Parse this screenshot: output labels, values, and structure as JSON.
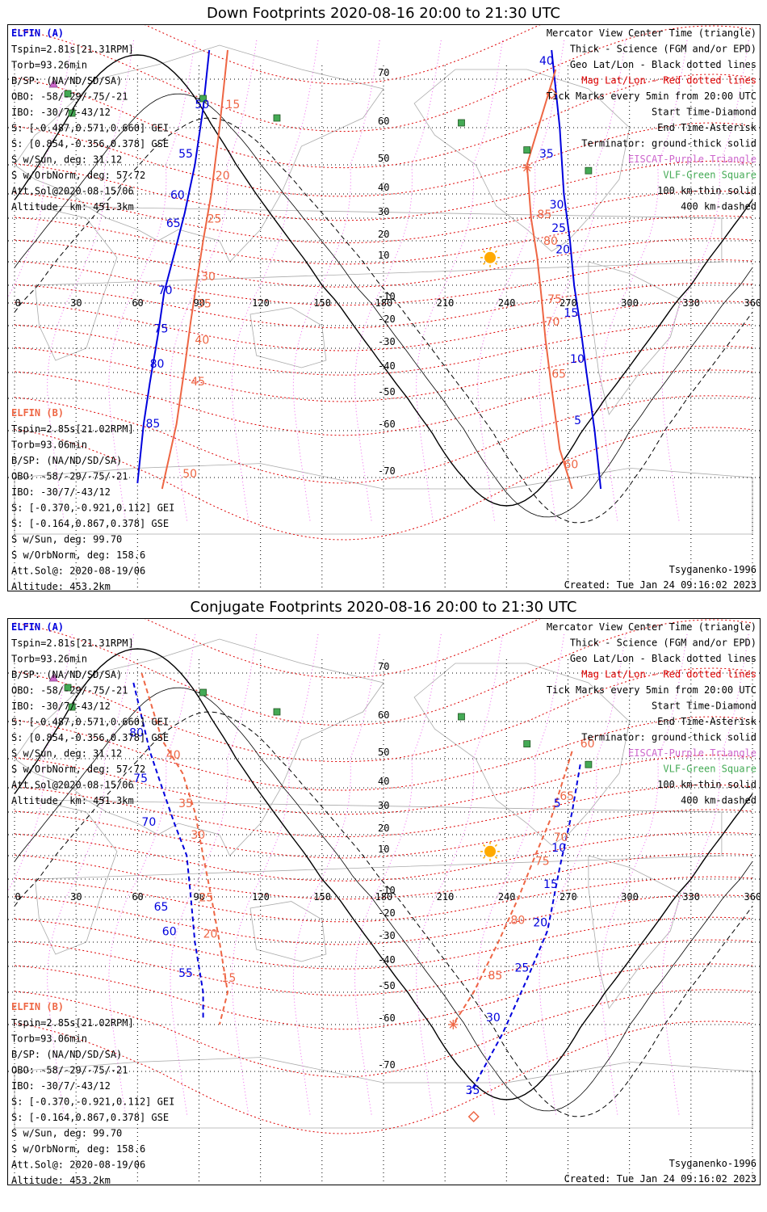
{
  "panels": [
    {
      "title": "Down Footprints 2020-08-16 20:00 to 21:30 UTC",
      "elfin_a_header": "ELFIN (A)",
      "elfin_a_info": [
        "Tspin=2.81s[21.31RPM]",
        "Torb=93.26min",
        "B/SP: (NA/ND/SD/SA)",
        "OBO: -58/-29/-75/-21",
        "IBO: -30/7/-43/12",
        "S: [-0.487,0.571,0.660] GEI",
        "S: [0.854,-0.356,0.378] GSE",
        "S w/Sun, deg: 31.12",
        "S w/OrbNorm, deg: 57.72",
        "Att.Sol@2020-08-15/06",
        "Altitude, km: 451.3km"
      ],
      "elfin_b_header": "ELFIN (B)",
      "elfin_b_info": [
        "Tspin=2.85s[21.02RPM]",
        "Torb=93.06min",
        "B/SP: (NA/ND/SD/SA)",
        "OBO: -58/-29/-75/-21",
        "IBO: -30/7/-43/12",
        "S: [-0.370,-0.921,0.112] GEI",
        "S: [-0.164,0.867,0.378] GSE",
        "S w/Sun, deg: 99.70",
        "S w/OrbNorm, deg: 158.6",
        "Att.Sol@: 2020-08-19/06",
        "Altitude: 453.2km"
      ],
      "legend": [
        "Mercator View Center Time (triangle)",
        "Thick - Science (FGM and/or EPD)",
        "Geo Lat/Lon - Black dotted lines",
        "Mag Lat/Lon - Red dotted lines",
        "Tick Marks every 5min from 20:00 UTC",
        "Start Time-Diamond",
        "End Time-Asterisk",
        "Terminator: ground-thick solid",
        "EISCAT-Purple Triangle",
        "VLF-Green Square",
        "100 km-thin solid",
        "400 km-dashed"
      ],
      "model": "Tsyganenko-1996",
      "created": "Created: Tue Jan 24 09:16:02 2023"
    },
    {
      "title": "Conjugate Footprints 2020-08-16 20:00 to 21:30 UTC",
      "elfin_a_header": "ELFIN (A)",
      "elfin_a_info": [
        "Tspin=2.81s[21.31RPM]",
        "Torb=93.26min",
        "B/SP: (NA/ND/SD/SA)",
        "OBO: -58/-29/-75/-21",
        "IBO: -30/7/-43/12",
        "S: [-0.487,0.571,0.660] GEI",
        "S: [0.854,-0.356,0.378] GSE",
        "S w/Sun, deg: 31.12",
        "S w/OrbNorm, deg: 57.72",
        "Att.Sol@2020-08-15/06",
        "Altitude, km: 451.3km"
      ],
      "elfin_b_header": "ELFIN (B)",
      "elfin_b_info": [
        "Tspin=2.85s[21.02RPM]",
        "Torb=93.06min",
        "B/SP: (NA/ND/SD/SA)",
        "OBO: -58/-29/-75/-21",
        "IBO: -30/7/-43/12",
        "S: [-0.370,-0.921,0.112] GEI",
        "S: [-0.164,0.867,0.378] GSE",
        "S w/Sun, deg: 99.70",
        "S w/OrbNorm, deg: 158.6",
        "Att.Sol@: 2020-08-19/06",
        "Altitude: 453.2km"
      ],
      "legend": [
        "Mercator View Center Time (triangle)",
        "Thick - Science (FGM and/or EPD)",
        "Geo Lat/Lon - Black dotted lines",
        "Mag Lat/Lon - Red dotted lines",
        "Tick Marks every 5min from 20:00 UTC",
        "Start Time-Diamond",
        "End Time-Asterisk",
        "Terminator: ground-thick solid",
        "EISCAT-Purple Triangle",
        "VLF-Green Square",
        "100 km-thin solid",
        "400 km-dashed"
      ],
      "model": "Tsyganenko-1996",
      "created": "Created: Tue Jan 24 09:16:02 2023"
    }
  ],
  "colors": {
    "elfin_a": "#0000dd",
    "elfin_b": "#ee6644",
    "geo_grid": "#000000",
    "mag_grid": "#dd0000",
    "mag_meridian": "#ee66ee",
    "eiscat": "#cc66cc",
    "vlf": "#44aa55",
    "sun": "#ffaa00"
  },
  "chart_data": [
    {
      "type": "scatter",
      "title": "Down Footprints 2020-08-16 20:00 to 21:30 UTC",
      "projection": "mercator",
      "lon_ticks": [
        "0",
        "30",
        "60",
        "90",
        "120",
        "150",
        "180",
        "210",
        "240",
        "270",
        "300",
        "330",
        "360"
      ],
      "lat_ticks": [
        "70",
        "60",
        "50",
        "40",
        "30",
        "20",
        "10",
        "-10",
        "-20",
        "-30",
        "-40",
        "-50",
        "-60",
        "-70"
      ],
      "xlim": [
        0,
        360
      ],
      "sun": {
        "lon": 232,
        "lat": 12
      },
      "vlf_stations": [
        {
          "lon": 92,
          "lat": 66
        },
        {
          "lon": 128,
          "lat": 62
        },
        {
          "lon": 218,
          "lat": 61
        },
        {
          "lon": 250,
          "lat": 54
        },
        {
          "lon": 280,
          "lat": 48
        },
        {
          "lon": 26,
          "lat": 67
        },
        {
          "lon": 28,
          "lat": 63
        }
      ],
      "eiscat": [
        {
          "lon": 19,
          "lat": 69
        }
      ],
      "series": [
        {
          "name": "ELFIN (A)",
          "points": [
            {
              "lon": 95,
              "lat": 76
            },
            {
              "lon": 92,
              "lat": 64
            },
            {
              "lon": 88,
              "lat": 50
            },
            {
              "lon": 83,
              "lat": 32
            },
            {
              "lon": 78,
              "lat": 14
            },
            {
              "lon": 73,
              "lat": -4
            },
            {
              "lon": 70,
              "lat": -24
            },
            {
              "lon": 66,
              "lat": -44
            },
            {
              "lon": 63,
              "lat": -58
            },
            {
              "lon": 60,
              "lat": -71
            }
          ],
          "ticks": [
            {
              "t": "50",
              "lon": 88,
              "lat": 64
            },
            {
              "t": "55",
              "lon": 80,
              "lat": 52
            },
            {
              "t": "60",
              "lon": 76,
              "lat": 38
            },
            {
              "t": "65",
              "lon": 74,
              "lat": 26
            },
            {
              "t": "70",
              "lon": 70,
              "lat": -5
            },
            {
              "t": "75",
              "lon": 68,
              "lat": -23
            },
            {
              "t": "80",
              "lon": 66,
              "lat": -38
            },
            {
              "t": "85",
              "lon": 64,
              "lat": -59
            }
          ]
        },
        {
          "name": "ELFIN (B)",
          "points": [
            {
              "lon": 104,
              "lat": 76
            },
            {
              "lon": 100,
              "lat": 60
            },
            {
              "lon": 96,
              "lat": 40
            },
            {
              "lon": 92,
              "lat": 20
            },
            {
              "lon": 89,
              "lat": 2
            },
            {
              "lon": 86,
              "lat": -18
            },
            {
              "lon": 83,
              "lat": -38
            },
            {
              "lon": 79,
              "lat": -58
            },
            {
              "lon": 72,
              "lat": -72
            }
          ],
          "ticks": [
            {
              "t": "15",
              "lon": 103,
              "lat": 64
            },
            {
              "t": "20",
              "lon": 98,
              "lat": 45
            },
            {
              "t": "25",
              "lon": 94,
              "lat": 28
            },
            {
              "t": "30",
              "lon": 91,
              "lat": 2
            },
            {
              "t": "35",
              "lon": 89,
              "lat": -12
            },
            {
              "t": "40",
              "lon": 88,
              "lat": -28
            },
            {
              "t": "45",
              "lon": 86,
              "lat": -45
            },
            {
              "t": "50",
              "lon": 82,
              "lat": -70
            }
          ]
        },
        {
          "name": "ELFIN (A) trace east",
          "points": [
            {
              "lon": 262,
              "lat": 76
            },
            {
              "lon": 266,
              "lat": 60
            },
            {
              "lon": 268,
              "lat": 40
            },
            {
              "lon": 271,
              "lat": 20
            },
            {
              "lon": 273,
              "lat": 0
            },
            {
              "lon": 276,
              "lat": -20
            },
            {
              "lon": 279,
              "lat": -40
            },
            {
              "lon": 283,
              "lat": -60
            },
            {
              "lon": 286,
              "lat": -72
            }
          ],
          "ticks": [
            {
              "t": "40",
              "lon": 256,
              "lat": 73
            },
            {
              "t": "35",
              "lon": 256,
              "lat": 52
            },
            {
              "t": "30",
              "lon": 261,
              "lat": 34
            },
            {
              "t": "25",
              "lon": 262,
              "lat": 24
            },
            {
              "t": "20",
              "lon": 264,
              "lat": 14
            },
            {
              "t": "15",
              "lon": 268,
              "lat": -16
            },
            {
              "t": "10",
              "lon": 271,
              "lat": -36
            },
            {
              "t": "5",
              "lon": 273,
              "lat": -58
            }
          ]
        },
        {
          "name": "ELFIN (B) trace east",
          "points": [
            {
              "lon": 264,
              "lat": 72
            },
            {
              "lon": 250,
              "lat": 50
            },
            {
              "lon": 252,
              "lat": 30
            },
            {
              "lon": 255,
              "lat": 12
            },
            {
              "lon": 257,
              "lat": -6
            },
            {
              "lon": 259,
              "lat": -26
            },
            {
              "lon": 262,
              "lat": -46
            },
            {
              "lon": 266,
              "lat": -64
            },
            {
              "lon": 272,
              "lat": -72
            }
          ],
          "ticks": [
            {
              "t": "85",
              "lon": 255,
              "lat": 30
            },
            {
              "t": "80",
              "lon": 258,
              "lat": 18
            },
            {
              "t": "75",
              "lon": 260,
              "lat": -10
            },
            {
              "t": "70",
              "lon": 259,
              "lat": -20
            },
            {
              "t": "65",
              "lon": 262,
              "lat": -42
            },
            {
              "t": "60",
              "lon": 268,
              "lat": -68
            }
          ]
        }
      ]
    },
    {
      "type": "scatter",
      "title": "Conjugate Footprints 2020-08-16 20:00 to 21:30 UTC",
      "projection": "mercator",
      "lon_ticks": [
        "0",
        "30",
        "60",
        "90",
        "120",
        "150",
        "180",
        "210",
        "240",
        "270",
        "300",
        "330",
        "360"
      ],
      "lat_ticks": [
        "70",
        "60",
        "50",
        "40",
        "30",
        "20",
        "10",
        "-10",
        "-20",
        "-30",
        "-40",
        "-50",
        "-60",
        "-70"
      ],
      "xlim": [
        0,
        360
      ],
      "sun": {
        "lon": 232,
        "lat": 12
      }
    }
  ]
}
